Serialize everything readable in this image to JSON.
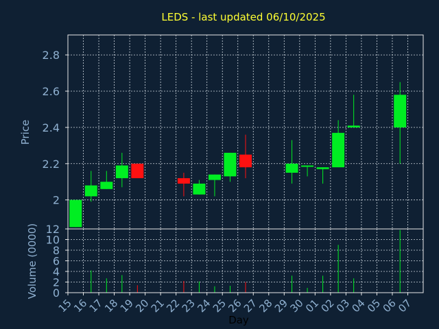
{
  "colors": {
    "background": "#0f2033",
    "title": "#ffff33",
    "axis_text": "#8fb0d0",
    "frame": "#e8e8e8",
    "grid": "#d0d8e0",
    "up": "#00ee22",
    "down": "#ff1111",
    "tick_label": "#8fb0d0"
  },
  "chart_data": [
    {
      "type": "candlestick",
      "title": "LEDS - last updated 06/10/2025",
      "ylabel": "Price",
      "ylim": [
        1.84,
        2.91
      ],
      "yticks": [
        2,
        2.2,
        2.4,
        2.6,
        2.8
      ],
      "ytick_labels": [
        "2",
        "2.2",
        "2.4",
        "2.6",
        "2.8"
      ],
      "grid": true,
      "categories": [
        "15",
        "16",
        "17",
        "18",
        "19",
        "20",
        "21",
        "22",
        "23",
        "24",
        "25",
        "26",
        "27",
        "28",
        "29",
        "30",
        "01",
        "02",
        "03",
        "04",
        "05",
        "06",
        "07"
      ],
      "candles": [
        {
          "x": "15",
          "open": 1.85,
          "close": 2.0,
          "high": 2.0,
          "low": 1.85
        },
        {
          "x": "16",
          "open": 2.02,
          "close": 2.08,
          "high": 2.16,
          "low": 1.99
        },
        {
          "x": "17",
          "open": 2.06,
          "close": 2.1,
          "high": 2.16,
          "low": 2.06
        },
        {
          "x": "18",
          "open": 2.12,
          "close": 2.19,
          "high": 2.26,
          "low": 2.07
        },
        {
          "x": "19",
          "open": 2.2,
          "close": 2.12,
          "high": 2.2,
          "low": 2.12
        },
        {
          "x": "22",
          "open": 2.12,
          "close": 2.09,
          "high": 2.15,
          "low": 2.02
        },
        {
          "x": "23",
          "open": 2.03,
          "close": 2.09,
          "high": 2.11,
          "low": 2.03
        },
        {
          "x": "24",
          "open": 2.11,
          "close": 2.14,
          "high": 2.14,
          "low": 2.02
        },
        {
          "x": "25",
          "open": 2.13,
          "close": 2.26,
          "high": 2.26,
          "low": 2.1
        },
        {
          "x": "26",
          "open": 2.25,
          "close": 2.18,
          "high": 2.36,
          "low": 2.12
        },
        {
          "x": "29",
          "open": 2.15,
          "close": 2.2,
          "high": 2.33,
          "low": 2.09
        },
        {
          "x": "30",
          "open": 2.19,
          "close": 2.19,
          "high": 2.19,
          "low": 2.13
        },
        {
          "x": "01",
          "open": 2.17,
          "close": 2.18,
          "high": 2.18,
          "low": 2.09
        },
        {
          "x": "02",
          "open": 2.18,
          "close": 2.37,
          "high": 2.44,
          "low": 2.18
        },
        {
          "x": "03",
          "open": 2.4,
          "close": 2.41,
          "high": 2.58,
          "low": 2.4
        },
        {
          "x": "06",
          "open": 2.4,
          "close": 2.58,
          "high": 2.65,
          "low": 2.2
        }
      ]
    },
    {
      "type": "bar",
      "ylabel": "Volume (0000)",
      "xlabel": "Day",
      "ylim": [
        0,
        12
      ],
      "yticks": [
        0,
        2,
        4,
        6,
        8,
        10,
        12
      ],
      "ytick_labels": [
        "0",
        "2",
        "4",
        "6",
        "8",
        "10",
        "12"
      ],
      "grid": true,
      "categories": [
        "15",
        "16",
        "17",
        "18",
        "19",
        "20",
        "21",
        "22",
        "23",
        "24",
        "25",
        "26",
        "27",
        "28",
        "29",
        "30",
        "01",
        "02",
        "03",
        "04",
        "05",
        "06",
        "07"
      ],
      "bars": [
        {
          "x": "15",
          "value": 0.0,
          "direction": "up"
        },
        {
          "x": "16",
          "value": 4.2,
          "direction": "up"
        },
        {
          "x": "17",
          "value": 2.7,
          "direction": "up"
        },
        {
          "x": "18",
          "value": 3.3,
          "direction": "up"
        },
        {
          "x": "19",
          "value": 1.4,
          "direction": "down"
        },
        {
          "x": "22",
          "value": 2.2,
          "direction": "down"
        },
        {
          "x": "23",
          "value": 2.1,
          "direction": "up"
        },
        {
          "x": "24",
          "value": 1.2,
          "direction": "up"
        },
        {
          "x": "25",
          "value": 1.3,
          "direction": "up"
        },
        {
          "x": "26",
          "value": 2.0,
          "direction": "down"
        },
        {
          "x": "29",
          "value": 3.2,
          "direction": "up"
        },
        {
          "x": "30",
          "value": 0.9,
          "direction": "up"
        },
        {
          "x": "01",
          "value": 3.2,
          "direction": "up"
        },
        {
          "x": "02",
          "value": 9.0,
          "direction": "up"
        },
        {
          "x": "03",
          "value": 2.7,
          "direction": "up"
        },
        {
          "x": "06",
          "value": 11.8,
          "direction": "up"
        }
      ]
    }
  ]
}
